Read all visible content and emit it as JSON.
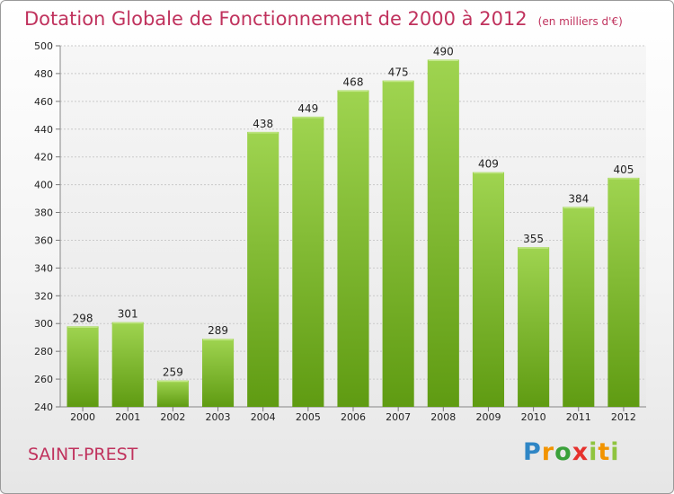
{
  "header": {
    "title": "Dotation Globale de Fonctionnement de 2000 à 2012",
    "unit_note": "(en milliers d'€)"
  },
  "footer": {
    "commune": "SAINT-PREST",
    "logo_text": "Proxiti"
  },
  "colors": {
    "title": "#c0325d",
    "bar_top": "#9fd450",
    "bar_bottom": "#5f9b12"
  },
  "chart_data": {
    "type": "bar",
    "title": "Dotation Globale de Fonctionnement de 2000 à 2012",
    "subtitle": "(en milliers d'€)",
    "xlabel": "",
    "ylabel": "",
    "categories": [
      "2000",
      "2001",
      "2002",
      "2003",
      "2004",
      "2005",
      "2006",
      "2007",
      "2008",
      "2009",
      "2010",
      "2011",
      "2012"
    ],
    "values": [
      298,
      301,
      259,
      289,
      438,
      449,
      468,
      475,
      490,
      409,
      355,
      384,
      405
    ],
    "ylim": [
      240,
      500
    ],
    "yticks": [
      240,
      260,
      280,
      300,
      320,
      340,
      360,
      380,
      400,
      420,
      440,
      460,
      480,
      500
    ],
    "grid": true,
    "legend": "none"
  }
}
